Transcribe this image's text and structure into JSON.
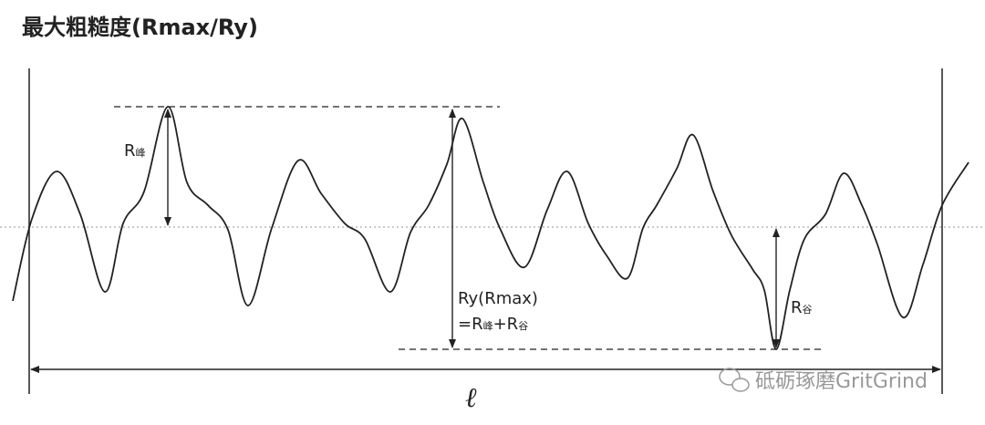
{
  "title": "最大粗糙度(Rmax/Ry)",
  "labels": {
    "peak": {
      "main": "R",
      "sub": "峰"
    },
    "ry": "Ry(Rmax)",
    "sum": [
      "=R",
      "峰",
      "+R",
      "谷"
    ],
    "valley": {
      "main": "R",
      "sub": "谷"
    },
    "length": "ℓ"
  },
  "watermark": "砥砺琢磨GritGrind"
}
